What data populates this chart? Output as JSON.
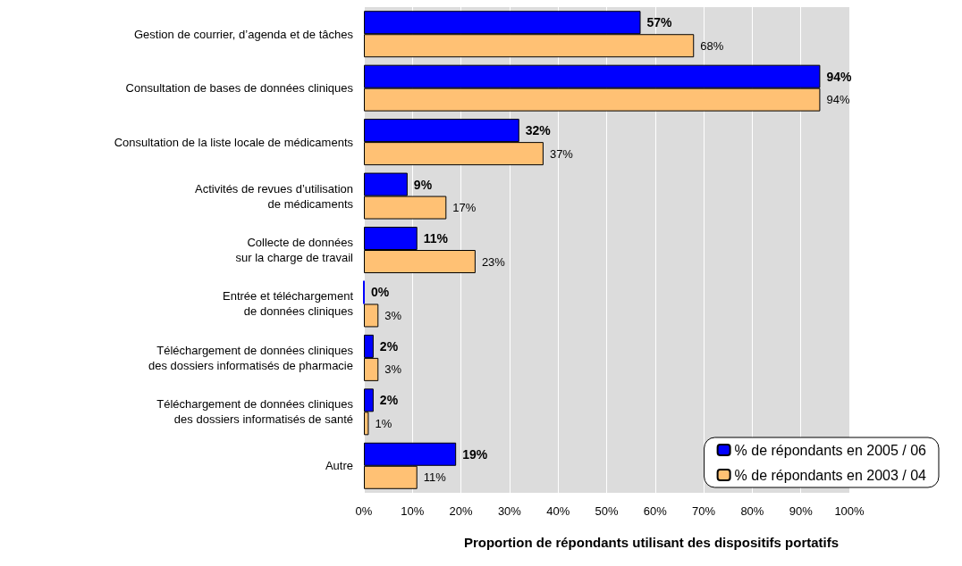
{
  "chart_data": {
    "type": "bar",
    "orientation": "horizontal",
    "xlabel": "Proportion de répondants utilisant des dispositifs portatifs",
    "categories": [
      "Gestion de courrier, d’agenda et de tâches",
      "Consultation de bases de données cliniques",
      "Consultation de la liste locale de médicaments",
      "Activités de revues d’utilisation\nde médicaments",
      "Collecte de données\nsur la charge de travail",
      "Entrée et téléchargement\nde données cliniques",
      "Téléchargement de données cliniques\ndes dossiers informatisés de pharmacie",
      "Téléchargement de données cliniques\ndes dossiers informatisés de santé",
      "Autre"
    ],
    "series": [
      {
        "name": "% de répondants en 2005 / 06",
        "color": "#0000ff",
        "values": [
          57,
          94,
          32,
          9,
          11,
          0,
          2,
          2,
          19
        ],
        "value_labels": [
          "57%",
          "94%",
          "32%",
          "9%",
          "11%",
          "0%",
          "2%",
          "2%",
          "19%"
        ]
      },
      {
        "name": "% de répondants en 2003 / 04",
        "color": "#ffc174",
        "values": [
          68,
          94,
          37,
          17,
          23,
          3,
          3,
          1,
          11
        ],
        "value_labels": [
          "68%",
          "94%",
          "37%",
          "17%",
          "23%",
          "3%",
          "3%",
          "1%",
          "11%"
        ]
      }
    ],
    "xlim": [
      0,
      100
    ],
    "xticks": [
      {
        "value": 0,
        "label": "0%"
      },
      {
        "value": 10,
        "label": "10%"
      },
      {
        "value": 20,
        "label": "20%"
      },
      {
        "value": 30,
        "label": "30%"
      },
      {
        "value": 40,
        "label": "40%"
      },
      {
        "value": 50,
        "label": "50%"
      },
      {
        "value": 60,
        "label": "60%"
      },
      {
        "value": 70,
        "label": "70%"
      },
      {
        "value": 80,
        "label": "80%"
      },
      {
        "value": 90,
        "label": "90%"
      },
      {
        "value": 100,
        "label": "100%"
      }
    ],
    "grid": "x",
    "legend": "bottom right"
  }
}
